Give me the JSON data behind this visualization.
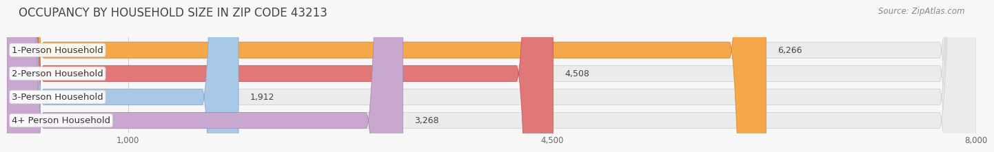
{
  "title": "OCCUPANCY BY HOUSEHOLD SIZE IN ZIP CODE 43213",
  "source": "Source: ZipAtlas.com",
  "categories": [
    "1-Person Household",
    "2-Person Household",
    "3-Person Household",
    "4+ Person Household"
  ],
  "values": [
    6266,
    4508,
    1912,
    3268
  ],
  "bar_colors": [
    "#F5A84A",
    "#E07878",
    "#A8C8E8",
    "#C8A8CE"
  ],
  "bar_edge_colors": [
    "#D4883A",
    "#C05858",
    "#88A8CC",
    "#A888B8"
  ],
  "xlim": [
    0,
    8500
  ],
  "xmin": 0,
  "xmax": 8000,
  "xticks": [
    1000,
    4500,
    8000
  ],
  "xtick_labels": [
    "1,000",
    "4,500",
    "8,000"
  ],
  "value_labels": [
    "6,266",
    "4,508",
    "1,912",
    "3,268"
  ],
  "background_color": "#f7f7f7",
  "bar_background_color": "#ebebeb",
  "title_fontsize": 12,
  "source_fontsize": 8.5,
  "label_fontsize": 9.5,
  "value_fontsize": 9,
  "tick_fontsize": 8.5
}
